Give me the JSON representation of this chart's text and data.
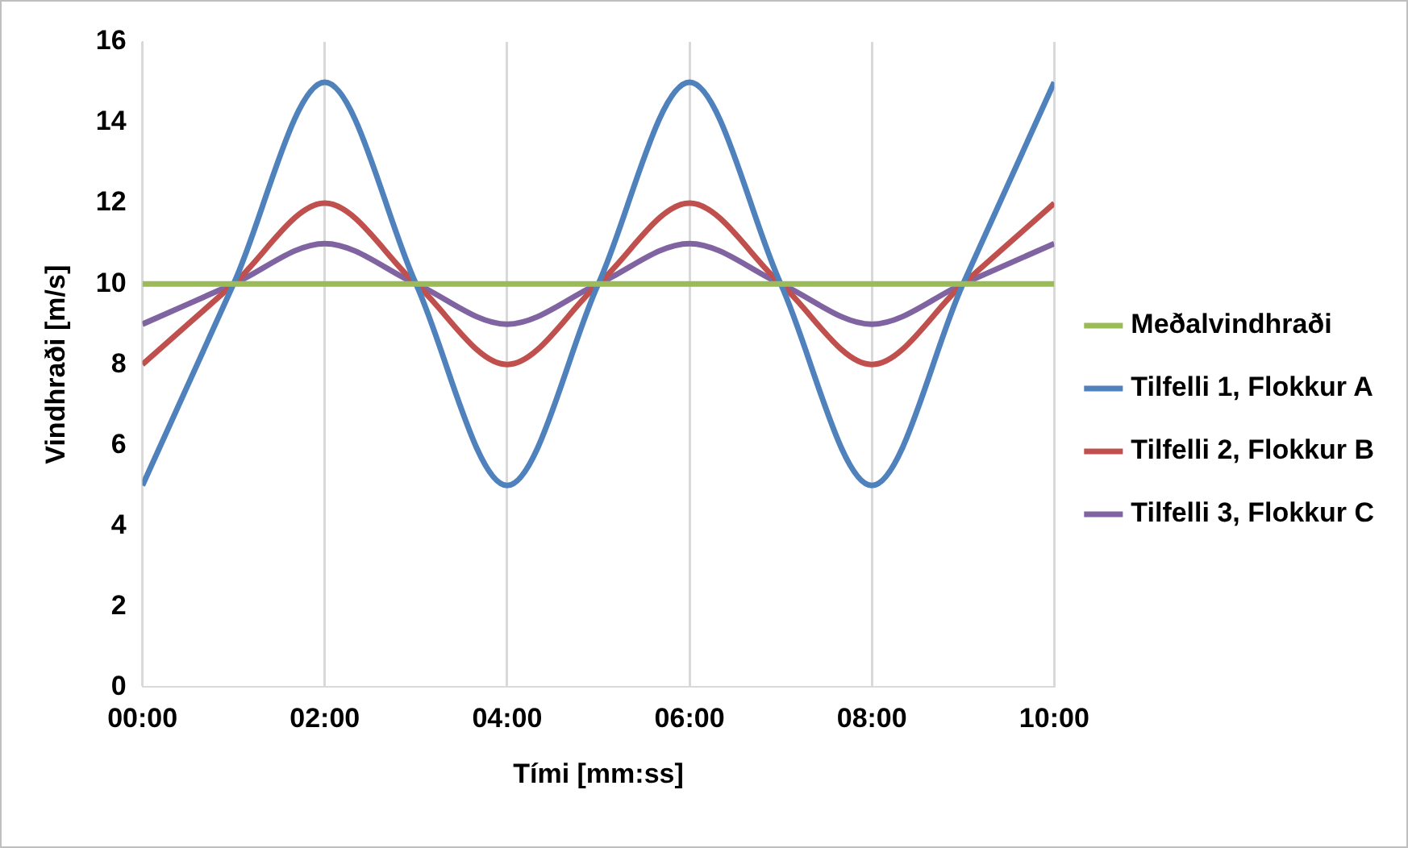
{
  "chart_data": {
    "type": "line",
    "xlabel": "Tími [mm:ss]",
    "ylabel": "Vindhraði [m/s]",
    "x": [
      0,
      1,
      2,
      3,
      4,
      5,
      6,
      7,
      8,
      9,
      10
    ],
    "series": [
      {
        "name": "Meðalvindhraði",
        "color": "#9bbb59",
        "values": [
          10,
          10,
          10,
          10,
          10,
          10,
          10,
          10,
          10,
          10,
          10
        ]
      },
      {
        "name": "Tilfelli 1, Flokkur A",
        "color": "#4f81bd",
        "values": [
          5,
          10,
          15,
          10,
          5,
          10,
          15,
          10,
          5,
          10,
          15
        ]
      },
      {
        "name": "Tilfelli 2, Flokkur B",
        "color": "#c0504d",
        "values": [
          8,
          10,
          12,
          10,
          8,
          10,
          12,
          10,
          8,
          10,
          12
        ]
      },
      {
        "name": "Tilfelli 3, Flokkur C",
        "color": "#8064a2",
        "values": [
          9,
          10,
          11,
          10,
          9,
          10,
          11,
          10,
          9,
          10,
          11
        ]
      }
    ],
    "xlim": [
      0,
      10
    ],
    "xticks": [
      {
        "value": 0,
        "label": "00:00"
      },
      {
        "value": 2,
        "label": "02:00"
      },
      {
        "value": 4,
        "label": "04:00"
      },
      {
        "value": 6,
        "label": "06:00"
      },
      {
        "value": 8,
        "label": "08:00"
      },
      {
        "value": 10,
        "label": "10:00"
      }
    ],
    "ylim": [
      0,
      16
    ],
    "yticks": [
      0,
      2,
      4,
      6,
      8,
      10,
      12,
      14,
      16
    ],
    "grid": "x",
    "legend": "right",
    "marker": "none",
    "line_style": "solid"
  }
}
